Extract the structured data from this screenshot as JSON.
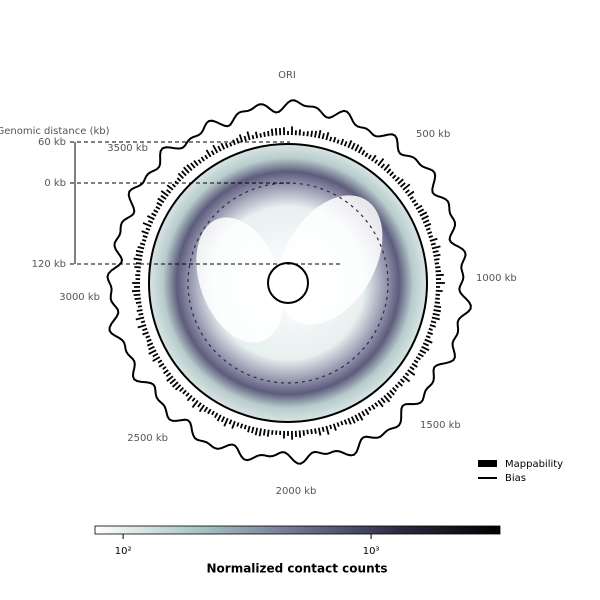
{
  "circle_labels": [
    "ORI",
    "500 kb",
    "1000 kb",
    "1500 kb",
    "2000 kb",
    "2500 kb",
    "3000 kb",
    "3500 kb"
  ],
  "genomic_distance": {
    "title": "Genomic distance (kb)",
    "ticks": [
      "60 kb",
      "0 kb",
      "120 kb"
    ]
  },
  "legend": [
    "Mappability",
    "Bias"
  ],
  "chart_data": {
    "type": "colorbar",
    "xlabel": "Normalized contact counts",
    "log_scale": true,
    "xlim": [
      77,
      3311
    ],
    "xticks": [
      {
        "value": 100,
        "label": "10²"
      },
      {
        "value": 1000,
        "label": "10³"
      }
    ],
    "colors": [
      "#ffffff",
      "#a9c6c6",
      "#6f7390",
      "#2c2b42",
      "#000000"
    ]
  }
}
